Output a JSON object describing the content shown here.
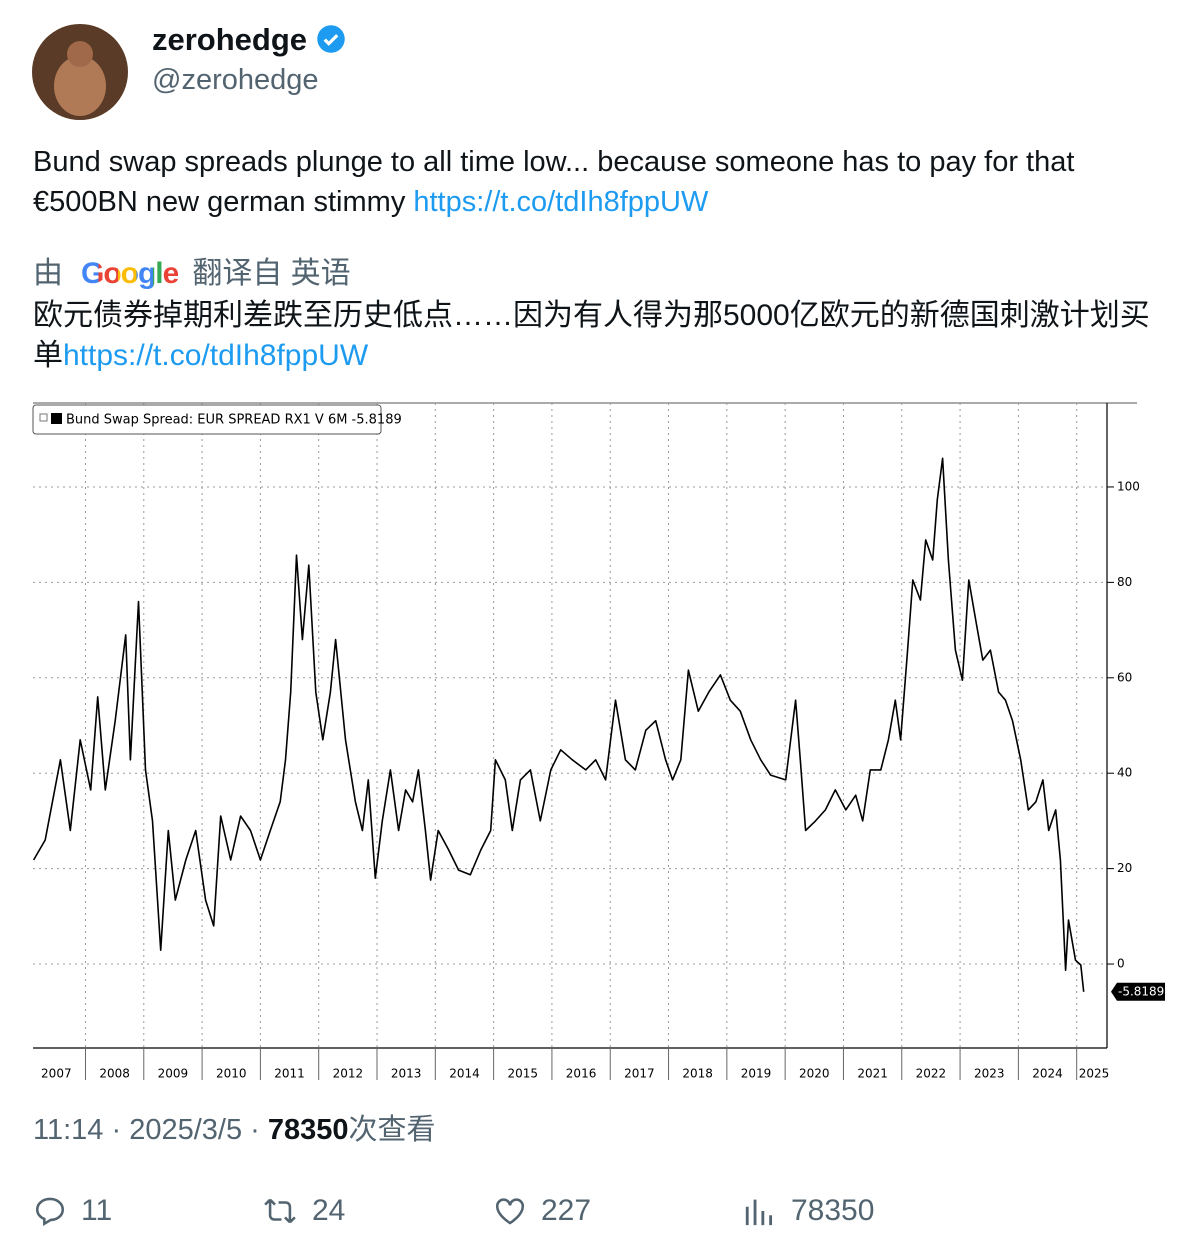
{
  "author": {
    "name": "zerohedge",
    "handle": "@zerohedge"
  },
  "tweet": {
    "text": "Bund swap spreads plunge to all time low... because someone has to pay for that €500BN new german stimmy ",
    "link": "https://t.co/tdIh8fppUW"
  },
  "translation": {
    "by": "由",
    "provider": "Google",
    "from": "翻译自 英语",
    "text": "欧元债券掉期利差跌至历史低点……因为有人得为那5000亿欧元的新德国刺激计划买单",
    "link": "https://t.co/tdIh8fppUW"
  },
  "chart_data": {
    "type": "line",
    "x": [
      2007.11,
      2007.31,
      2007.57,
      2007.74,
      2007.91,
      2008.09,
      2008.21,
      2008.34,
      2008.51,
      2008.69,
      2008.77,
      2008.91,
      2009.03,
      2009.15,
      2009.29,
      2009.42,
      2009.54,
      2009.72,
      2009.89,
      2010.06,
      2010.2,
      2010.32,
      2010.49,
      2010.66,
      2010.83,
      2011.0,
      2011.17,
      2011.34,
      2011.43,
      2011.52,
      2011.62,
      2011.72,
      2011.83,
      2011.95,
      2012.07,
      2012.2,
      2012.29,
      2012.46,
      2012.63,
      2012.75,
      2012.85,
      2012.97,
      2013.09,
      2013.23,
      2013.37,
      2013.49,
      2013.61,
      2013.71,
      2013.83,
      2013.92,
      2014.05,
      2014.23,
      2014.4,
      2014.6,
      2014.78,
      2014.95,
      2015.03,
      2015.2,
      2015.32,
      2015.46,
      2015.63,
      2015.8,
      2015.98,
      2016.15,
      2016.35,
      2016.58,
      2016.75,
      2016.92,
      2017.09,
      2017.26,
      2017.43,
      2017.61,
      2017.78,
      2017.95,
      2018.07,
      2018.21,
      2018.34,
      2018.51,
      2018.69,
      2018.89,
      2019.06,
      2019.23,
      2019.41,
      2019.58,
      2019.75,
      2020.01,
      2020.18,
      2020.26,
      2020.35,
      2020.52,
      2020.69,
      2020.86,
      2021.04,
      2021.21,
      2021.33,
      2021.46,
      2021.64,
      2021.77,
      2021.89,
      2021.98,
      2022.1,
      2022.19,
      2022.32,
      2022.41,
      2022.53,
      2022.61,
      2022.7,
      2022.8,
      2022.92,
      2023.04,
      2023.15,
      2023.27,
      2023.39,
      2023.52,
      2023.66,
      2023.78,
      2023.9,
      2024.04,
      2024.17,
      2024.3,
      2024.42,
      2024.52,
      2024.64,
      2024.72,
      2024.81,
      2024.86,
      2024.98,
      2025.07,
      2025.12
    ],
    "series": [
      {
        "name": "Bund Swap Spread: EUR SPREAD RX1 V 6M  -5.8189",
        "color": "#000000",
        "values": [
          21.8,
          26,
          42.8,
          28,
          47,
          36.5,
          56,
          36.5,
          51,
          69,
          42.8,
          76,
          40.7,
          30,
          2.9,
          28,
          13.4,
          21.8,
          28,
          13.4,
          8,
          31,
          21.8,
          31,
          28,
          21.8,
          28,
          34,
          42.8,
          57,
          85.7,
          68,
          83.6,
          57,
          47,
          57,
          68,
          47,
          34,
          28,
          38.6,
          18,
          30,
          40.7,
          28,
          36.5,
          34,
          40.7,
          28,
          17.6,
          28,
          23.9,
          19.7,
          18.7,
          23.9,
          28,
          42.8,
          38.6,
          28,
          38.6,
          40.7,
          30,
          40.7,
          44.9,
          42.8,
          40.7,
          42.8,
          38.6,
          55.3,
          42.8,
          40.7,
          49,
          51,
          42.8,
          38.6,
          42.8,
          61.6,
          53,
          57,
          60.6,
          55.3,
          53,
          47,
          42.8,
          39.6,
          38.6,
          55.3,
          42.8,
          28,
          30,
          32.3,
          36.5,
          32.3,
          35.4,
          30,
          40.7,
          40.7,
          47,
          55.3,
          47,
          65.8,
          80.5,
          76.3,
          88.9,
          84.7,
          97.3,
          106,
          84.7,
          65.8,
          59.5,
          80.5,
          72,
          63.7,
          65.8,
          57,
          55.3,
          51,
          42.8,
          32.3,
          34,
          38.6,
          28,
          32.3,
          21.8,
          -1.3,
          9.2,
          0.8,
          -0.2,
          -5.8189
        ]
      }
    ],
    "xlim": [
      2007.1,
      2025.52
    ],
    "xticks": [
      2007,
      2008,
      2009,
      2010,
      2011,
      2012,
      2013,
      2014,
      2015,
      2016,
      2017,
      2018,
      2019,
      2020,
      2021,
      2022,
      2023,
      2024,
      2025
    ],
    "ylim": [
      -17.6,
      117.6
    ],
    "yticks": [
      0,
      20,
      40,
      60,
      80,
      100
    ],
    "grid": true
  },
  "meta": {
    "time": "11:14",
    "date": "2025/3/5",
    "views": 78350,
    "views_label": "次查看"
  },
  "actions": {
    "replies": 11,
    "retweets": 24,
    "likes": 227,
    "views": 78350
  }
}
